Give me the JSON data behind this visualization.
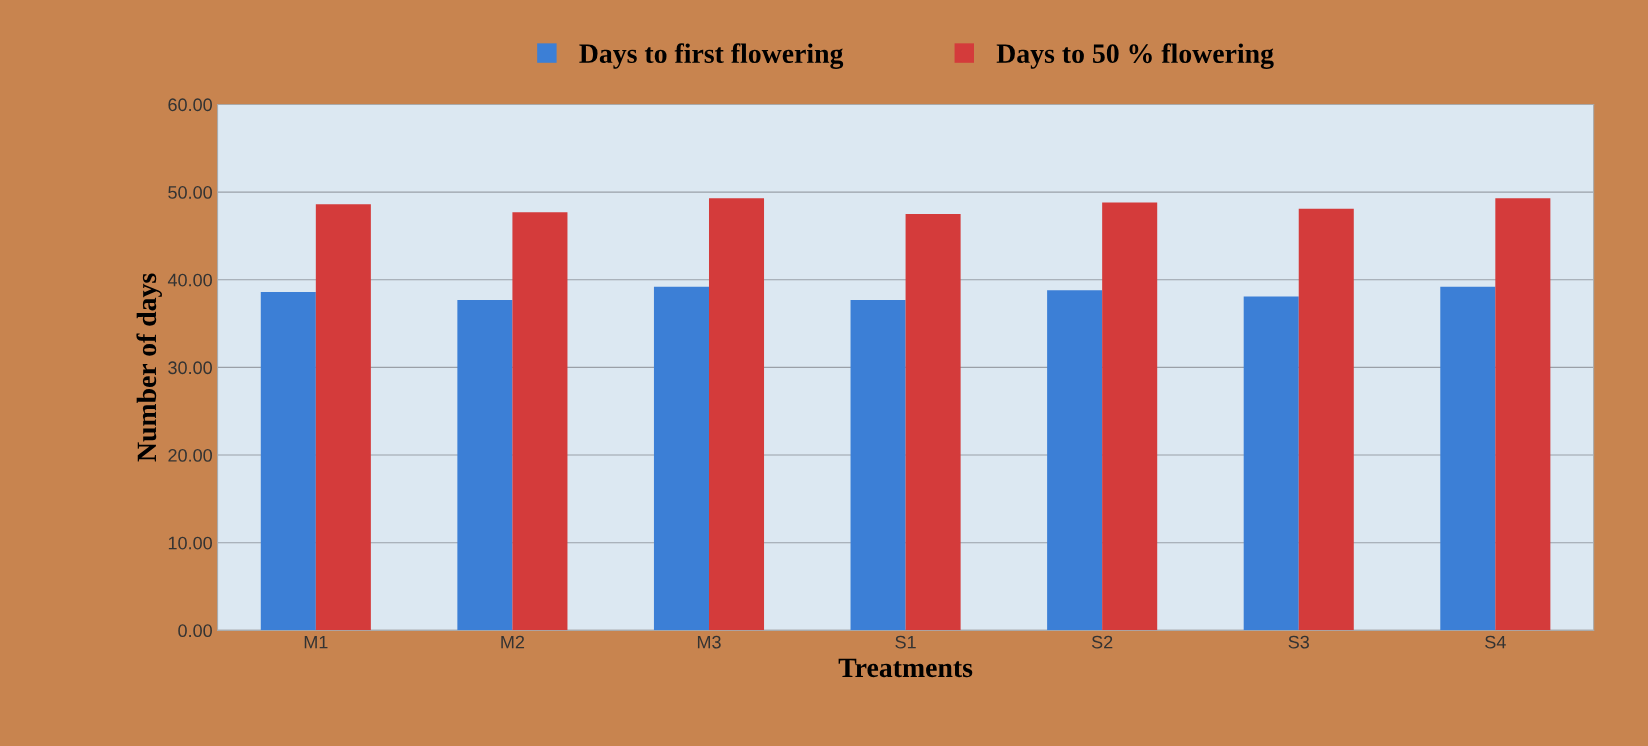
{
  "chart_data": {
    "type": "bar",
    "xlabel": "Treatments",
    "ylabel": "Number of days",
    "categories": [
      "M1",
      "M2",
      "M3",
      "S1",
      "S2",
      "S3",
      "S4"
    ],
    "series": [
      {
        "name": "Days to first flowering",
        "color": "#3c7fd6",
        "values": [
          38.6,
          37.7,
          39.2,
          37.7,
          38.8,
          38.1,
          39.2
        ]
      },
      {
        "name": "Days to 50 % flowering",
        "color": "#d43b3b",
        "values": [
          48.6,
          47.7,
          49.3,
          47.5,
          48.8,
          48.1,
          49.3
        ]
      }
    ],
    "ylim": [
      0,
      60
    ],
    "yticks": [
      {
        "value": 0,
        "label": "0.00"
      },
      {
        "value": 10,
        "label": "10.00"
      },
      {
        "value": 20,
        "label": "20.00"
      },
      {
        "value": 30,
        "label": "30.00"
      },
      {
        "value": 40,
        "label": "40.00"
      },
      {
        "value": 50,
        "label": "50.00"
      },
      {
        "value": 60,
        "label": "60.00"
      }
    ],
    "grid": "y",
    "legend": "top"
  }
}
